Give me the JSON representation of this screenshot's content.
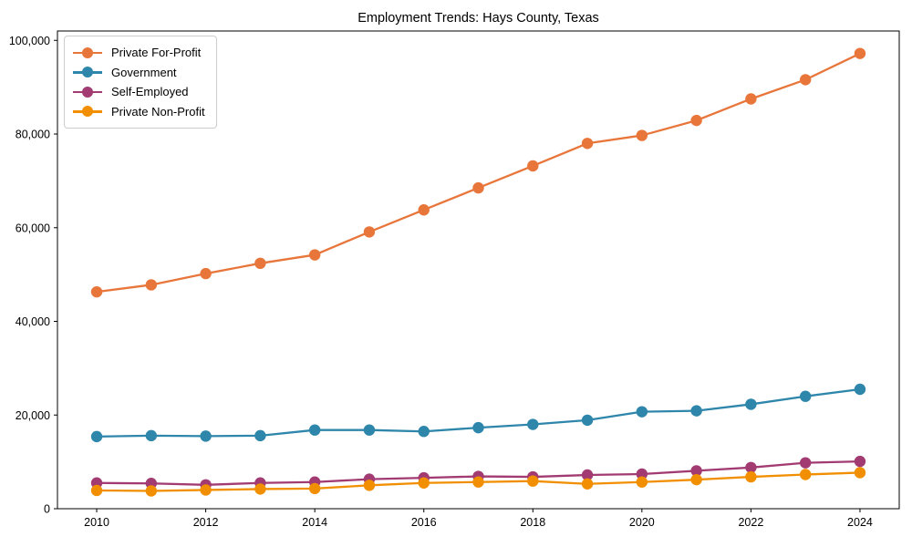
{
  "chart_data": {
    "type": "line",
    "title": "Employment Trends: Hays County, Texas",
    "x": [
      2010,
      2011,
      2012,
      2013,
      2014,
      2015,
      2016,
      2017,
      2018,
      2019,
      2020,
      2021,
      2022,
      2023,
      2024
    ],
    "series": [
      {
        "name": "Private For-Profit",
        "color": "#e8763b",
        "values": [
          46300,
          47800,
          50200,
          52400,
          54200,
          59100,
          63800,
          68500,
          73200,
          78000,
          79700,
          82900,
          87500,
          91600,
          97200
        ]
      },
      {
        "name": "Government",
        "color": "#2e86ab",
        "values": [
          15400,
          15600,
          15500,
          15600,
          16800,
          16800,
          16500,
          17300,
          18000,
          18900,
          20700,
          20900,
          22300,
          24000,
          25500
        ]
      },
      {
        "name": "Self-Employed",
        "color": "#a23b72",
        "values": [
          5500,
          5400,
          5100,
          5500,
          5700,
          6300,
          6600,
          6900,
          6800,
          7200,
          7400,
          8100,
          8800,
          9800,
          10100
        ]
      },
      {
        "name": "Private Non-Profit",
        "color": "#f18f01",
        "values": [
          3900,
          3800,
          4000,
          4200,
          4300,
          5000,
          5500,
          5700,
          5900,
          5300,
          5700,
          6200,
          6800,
          7300,
          7700
        ]
      }
    ],
    "x_ticks": [
      2010,
      2012,
      2014,
      2016,
      2018,
      2020,
      2022,
      2024
    ],
    "x_tick_labels": [
      "2010",
      "2012",
      "2014",
      "2016",
      "2018",
      "2020",
      "2022",
      "2024"
    ],
    "y_ticks": [
      0,
      20000,
      40000,
      60000,
      80000,
      100000
    ],
    "y_tick_labels": [
      "0",
      "20,000",
      "40,000",
      "60,000",
      "80,000",
      "100,000"
    ],
    "xlim": [
      2009.28,
      2024.72
    ],
    "ylim": [
      0,
      102000
    ],
    "xlabel": "",
    "ylabel": "",
    "grid": false,
    "legend_position": "upper-left",
    "axis_color": "#000000"
  }
}
